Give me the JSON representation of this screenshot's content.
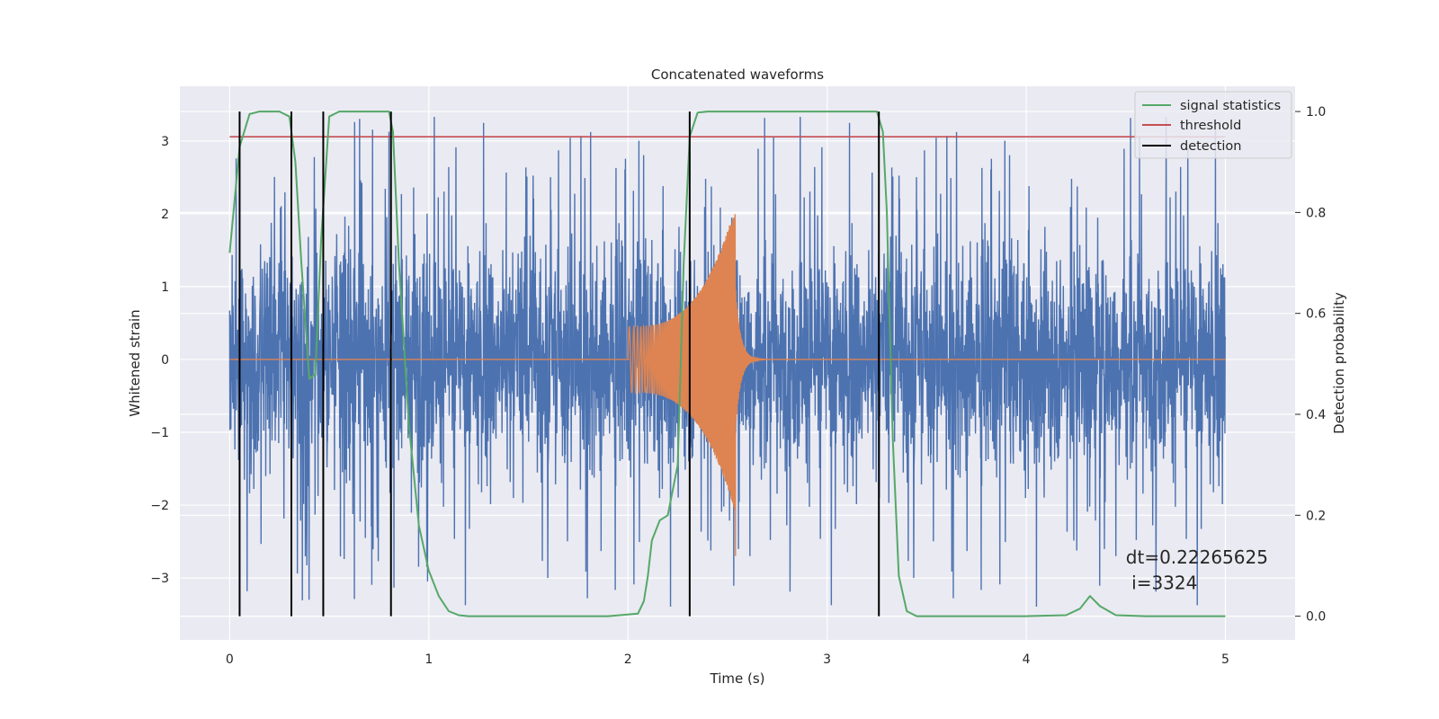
{
  "chart_data": {
    "type": "line",
    "title": "Concatenated waveforms",
    "xlabel": "Time (s)",
    "ylabel": "Whitened strain",
    "ylabel_right": "Detection probability",
    "xlim": [
      -0.25,
      5.35
    ],
    "ylim": [
      -3.85,
      3.75
    ],
    "ylim_right": [
      -0.047,
      1.05
    ],
    "x_ticks": [
      0,
      1,
      2,
      3,
      4,
      5
    ],
    "x_tick_labels": [
      "0",
      "1",
      "2",
      "3",
      "4",
      "5"
    ],
    "y_ticks": [
      -3,
      -2,
      -1,
      0,
      1,
      2,
      3
    ],
    "y_tick_labels": [
      "−3",
      "−2",
      "−1",
      "0",
      "1",
      "2",
      "3"
    ],
    "y_right_ticks": [
      0.0,
      0.2,
      0.4,
      0.6,
      0.8,
      1.0
    ],
    "y_right_tick_labels": [
      "0.0",
      "0.2",
      "0.4",
      "0.6",
      "0.8",
      "1.0"
    ],
    "grid": true,
    "legend_position": "top-right",
    "colors": {
      "strain": "#4c72b0",
      "template": "#dd8452",
      "signal_statistics": "#55a868",
      "threshold": "#c44e52",
      "detection": "#000000",
      "background": "#eaeaf2",
      "grid": "#ffffff"
    },
    "series": [
      {
        "name": "signal statistics",
        "axis": "right",
        "x": [
          0.0,
          0.05,
          0.1,
          0.15,
          0.25,
          0.3,
          0.33,
          0.36,
          0.4,
          0.43,
          0.46,
          0.5,
          0.55,
          0.8,
          0.82,
          0.85,
          0.9,
          0.95,
          1.0,
          1.05,
          1.1,
          1.15,
          1.2,
          1.5,
          1.9,
          2.05,
          2.08,
          2.1,
          2.12,
          2.16,
          2.2,
          2.25,
          2.28,
          2.31,
          2.35,
          2.4,
          3.25,
          3.28,
          3.3,
          3.33,
          3.36,
          3.4,
          3.45,
          3.5,
          4.0,
          4.2,
          4.27,
          4.32,
          4.37,
          4.45,
          4.6,
          5.0
        ],
        "y": [
          0.72,
          0.93,
          0.995,
          1.0,
          1.0,
          0.99,
          0.9,
          0.7,
          0.47,
          0.48,
          0.75,
          0.99,
          1.0,
          1.0,
          0.96,
          0.7,
          0.38,
          0.18,
          0.09,
          0.04,
          0.01,
          0.002,
          0.0,
          0.0,
          0.0,
          0.005,
          0.03,
          0.08,
          0.15,
          0.19,
          0.2,
          0.3,
          0.7,
          0.95,
          0.998,
          1.0,
          1.0,
          0.96,
          0.8,
          0.35,
          0.08,
          0.01,
          0.0,
          0.0,
          0.0,
          0.002,
          0.015,
          0.04,
          0.02,
          0.002,
          0.0,
          0.0
        ]
      },
      {
        "name": "threshold",
        "axis": "right",
        "x": [
          0,
          5
        ],
        "y": [
          0.95,
          0.95
        ]
      },
      {
        "name": "detection",
        "axis": "right",
        "x": [
          0.05,
          0.31,
          0.47,
          0.81,
          2.31,
          3.26
        ],
        "y_range": [
          0.0,
          1.0
        ]
      }
    ],
    "strain_noise": {
      "axis": "left",
      "x_range": [
        0,
        5
      ],
      "samples": 4000,
      "core_amplitude": 0.95,
      "spike_max": 3.4
    },
    "template_chirp": {
      "axis": "left",
      "x_start": 2.0,
      "x_peak": 2.54,
      "x_end": 2.7,
      "amplitude_start": 0.45,
      "amplitude_peak_high": 2.1,
      "amplitude_peak_low": -2.7
    },
    "annotations": [
      {
        "text": "dt=0.22265625",
        "x": 4.5,
        "y": -2.8
      },
      {
        "text": " i=3324",
        "x": 4.5,
        "y": -3.15
      }
    ]
  }
}
